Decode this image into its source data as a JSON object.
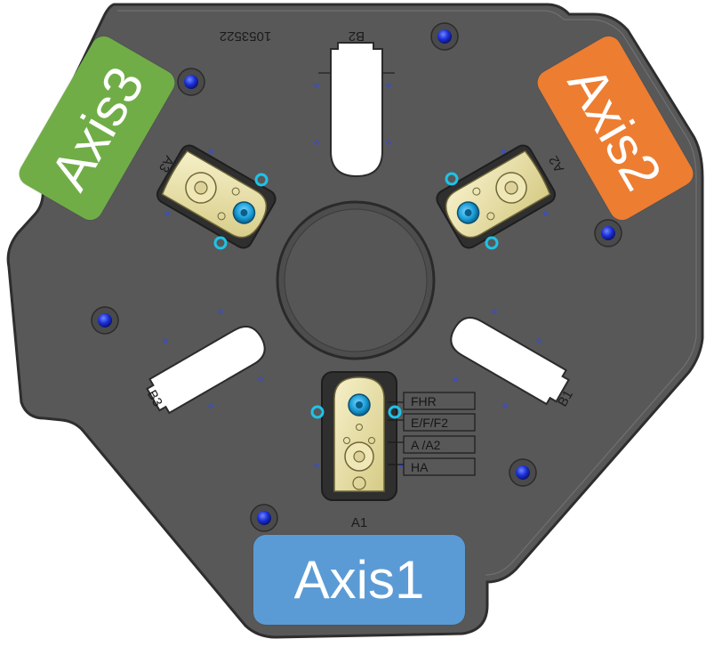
{
  "axis_labels": {
    "axis1": {
      "text": "Axis1",
      "color": "#5b9bd5"
    },
    "axis2": {
      "text": "Axis2",
      "color": "#ed7d31"
    },
    "axis3": {
      "text": "Axis3",
      "color": "#70ad47"
    }
  },
  "engravings": {
    "part_number": "1053522",
    "slot_b1": "B1",
    "slot_b2": "B2",
    "slot_b3": "B3",
    "station_a1": "A1",
    "station_a2": "A2",
    "station_a3": "A3"
  },
  "setting_tags": [
    "FHR",
    "E/F/F2",
    "A /A2",
    "HA"
  ],
  "colors": {
    "plate": "#585858",
    "plate_edge": "#3a3a3a",
    "brass": "#e8dfa6",
    "screw_blue": "#1a9fd8",
    "dowel_blue": "#1c2fd6"
  }
}
